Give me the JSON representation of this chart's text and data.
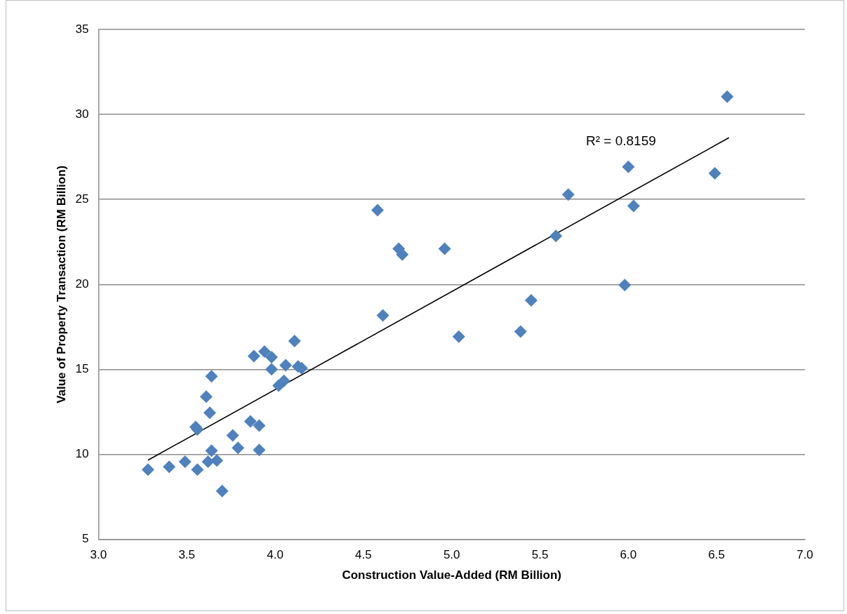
{
  "chart_data": {
    "type": "scatter",
    "xlabel": "Construction Value-Added (RM Billion)",
    "ylabel": "Value of Property Transaction (RM Billion)",
    "xlim": [
      3,
      7
    ],
    "xticks": [
      {
        "value": 3,
        "label": "3.0"
      },
      {
        "value": 3.5,
        "label": "3.5"
      },
      {
        "value": 4,
        "label": "4.0"
      },
      {
        "value": 4.5,
        "label": "4.5"
      },
      {
        "value": 5,
        "label": "5.0"
      },
      {
        "value": 5.5,
        "label": "5.5"
      },
      {
        "value": 6,
        "label": "6.0"
      },
      {
        "value": 6.5,
        "label": "6.5"
      },
      {
        "value": 7,
        "label": "7.0"
      }
    ],
    "ylim": [
      5,
      35
    ],
    "yticks": [
      5,
      10,
      15,
      20,
      25,
      30,
      35
    ],
    "grid": "y",
    "legend": false,
    "marker": "diamond",
    "annotations": [
      "R² = 0.8159"
    ],
    "series": [
      {
        "type": "scatter",
        "color": "#4f81bd",
        "x": [
          3.28,
          3.4,
          3.49,
          3.56,
          3.7,
          3.62,
          3.67,
          3.64,
          3.55,
          3.56,
          3.63,
          3.61,
          3.64,
          3.76,
          3.79,
          3.86,
          3.91,
          3.91,
          3.88,
          3.94,
          3.98,
          3.98,
          4.02,
          4.05,
          4.06,
          4.11,
          4.13,
          4.15,
          4.58,
          4.7,
          4.72,
          4.96,
          5.66,
          6.03,
          5.59,
          5.98,
          4.61,
          5.45,
          5.04,
          5.39,
          6.56,
          6.0,
          6.49
        ],
        "values": [
          9.1,
          9.27,
          9.57,
          9.1,
          7.84,
          9.57,
          9.64,
          10.22,
          11.61,
          11.47,
          12.45,
          13.4,
          14.59,
          11.11,
          10.38,
          11.94,
          11.69,
          10.26,
          15.78,
          16.05,
          15.72,
          15.01,
          14.05,
          14.33,
          15.24,
          16.67,
          15.17,
          15.07,
          24.37,
          22.1,
          21.76,
          22.1,
          25.29,
          24.62,
          22.85,
          19.96,
          18.17,
          19.06,
          16.93,
          17.23,
          31.05,
          26.92,
          26.54
        ]
      },
      {
        "type": "line",
        "color": "#000000",
        "marker": "none",
        "x": [
          3.28,
          6.57
        ],
        "values": [
          9.66,
          28.63
        ]
      }
    ]
  }
}
